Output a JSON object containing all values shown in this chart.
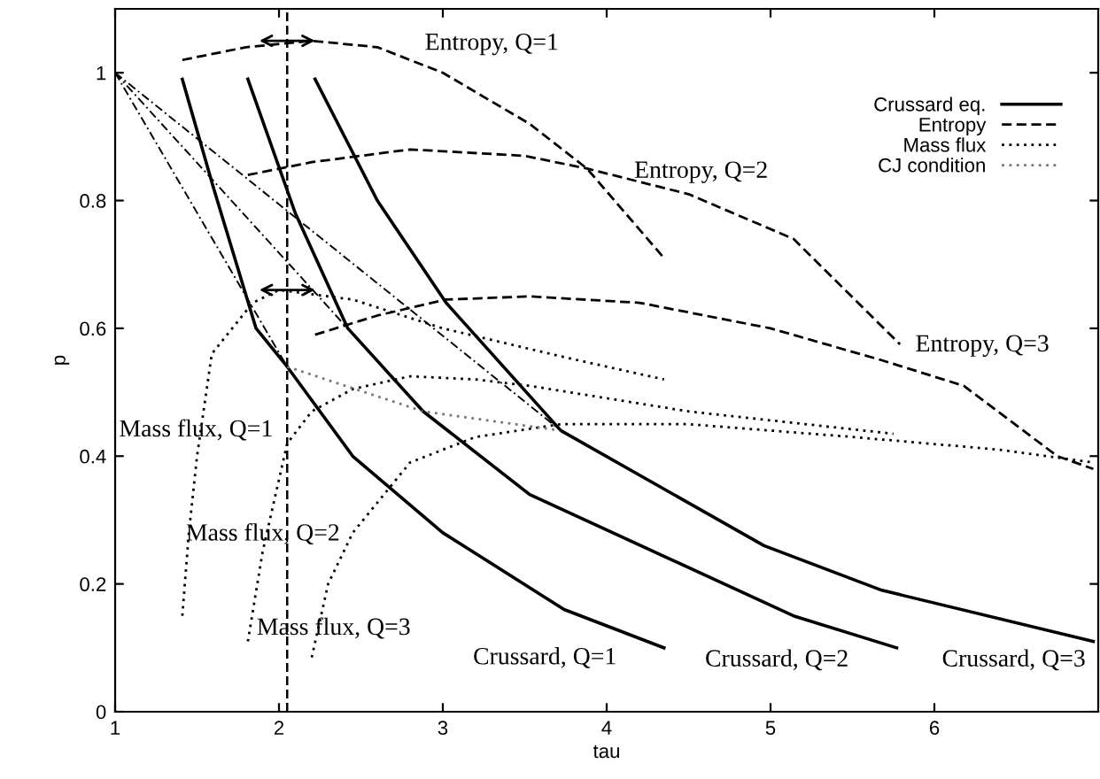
{
  "chart_data": {
    "type": "line",
    "xlabel": "tau",
    "ylabel": "p",
    "xlim": [
      1,
      7
    ],
    "ylim": [
      0,
      1.1
    ],
    "xticks": [
      1,
      2,
      3,
      4,
      5,
      6
    ],
    "yticks": [
      0,
      0.2,
      0.4,
      0.6,
      0.8,
      1
    ],
    "grid": false,
    "legend": "top right",
    "marker": "none",
    "series": [
      {
        "name": "Crussard eq.",
        "color": "#000000",
        "line_style": "solid",
        "x": [
          1.41,
          1.6,
          1.86,
          2.05,
          2.45,
          3.0,
          3.74,
          4.35
        ],
        "values": [
          0.99,
          0.82,
          0.6,
          0.54,
          0.4,
          0.28,
          0.16,
          0.1
        ]
      },
      {
        "color": "#000000",
        "line_style": "solid",
        "x": [
          1.81,
          2.1,
          2.42,
          2.88,
          3.53,
          5.14,
          5.77
        ],
        "values": [
          0.99,
          0.78,
          0.6,
          0.47,
          0.34,
          0.15,
          0.1
        ]
      },
      {
        "color": "#000000",
        "line_style": "solid",
        "x": [
          2.22,
          2.6,
          3.02,
          3.72,
          4.96,
          5.68,
          6.97
        ],
        "values": [
          0.99,
          0.8,
          0.64,
          0.44,
          0.26,
          0.19,
          0.11
        ]
      },
      {
        "name": "Entropy",
        "color": "#000000",
        "line_style": "dashed",
        "x": [
          1.41,
          1.8,
          2.2,
          2.6,
          3.0,
          3.53,
          3.88,
          4.35
        ],
        "values": [
          1.02,
          1.04,
          1.05,
          1.04,
          1.0,
          0.92,
          0.85,
          0.71
        ]
      },
      {
        "color": "#000000",
        "line_style": "dashed",
        "x": [
          1.81,
          2.2,
          2.8,
          3.5,
          3.88,
          4.5,
          5.14,
          5.79
        ],
        "values": [
          0.84,
          0.86,
          0.88,
          0.87,
          0.85,
          0.81,
          0.74,
          0.575
        ]
      },
      {
        "color": "#000000",
        "line_style": "dashed",
        "x": [
          2.22,
          2.6,
          3.02,
          3.53,
          4.2,
          5.0,
          5.68,
          6.18,
          6.75,
          6.97
        ],
        "values": [
          0.59,
          0.62,
          0.645,
          0.65,
          0.64,
          0.6,
          0.55,
          0.51,
          0.4,
          0.38
        ]
      },
      {
        "name": "Mass flux",
        "color": "#000000",
        "line_style": "dotted",
        "x": [
          1.41,
          1.45,
          1.5,
          1.59,
          1.84,
          2.0,
          2.45,
          3.0,
          3.74,
          4.35
        ],
        "values": [
          0.15,
          0.28,
          0.4,
          0.56,
          0.64,
          0.66,
          0.645,
          0.6,
          0.555,
          0.52
        ]
      },
      {
        "color": "#000000",
        "line_style": "dotted",
        "x": [
          1.81,
          1.9,
          2.05,
          2.2,
          2.45,
          2.8,
          3.2,
          3.53,
          4.5,
          5.75
        ],
        "values": [
          0.11,
          0.25,
          0.42,
          0.47,
          0.505,
          0.525,
          0.52,
          0.51,
          0.47,
          0.435
        ]
      },
      {
        "color": "#000000",
        "line_style": "dotted",
        "x": [
          2.2,
          2.3,
          2.45,
          2.8,
          3.2,
          3.72,
          4.5,
          5.5,
          6.4,
          6.97
        ],
        "values": [
          0.085,
          0.2,
          0.28,
          0.39,
          0.43,
          0.45,
          0.45,
          0.43,
          0.41,
          0.39
        ]
      },
      {
        "name": "CJ condition",
        "color": "#777777",
        "line_style": "dotted",
        "x": [
          2.05,
          2.88,
          3.72
        ],
        "values": [
          0.54,
          0.47,
          0.44
        ]
      },
      {
        "color": "#000000",
        "line_style": "dashdot",
        "x": [
          1,
          2.05
        ],
        "values": [
          1,
          0.54
        ]
      },
      {
        "color": "#000000",
        "line_style": "dashdot",
        "x": [
          1,
          2.88
        ],
        "values": [
          1,
          0.47
        ]
      },
      {
        "color": "#000000",
        "line_style": "dashdot",
        "x": [
          1,
          3.72
        ],
        "values": [
          1,
          0.44
        ]
      }
    ],
    "ref_lines": [
      {
        "axis": "x",
        "value": 2.05,
        "line_style": "dashed",
        "color": "#000000"
      }
    ],
    "annotations": [
      "Entropy, Q=1",
      "Entropy, Q=2",
      "Entropy, Q=3",
      "Mass flux, Q=1",
      "Mass flux, Q=2",
      "Mass flux, Q=3",
      "Crussard, Q=1",
      "Crussard, Q=2",
      "Crussard, Q=3"
    ]
  }
}
